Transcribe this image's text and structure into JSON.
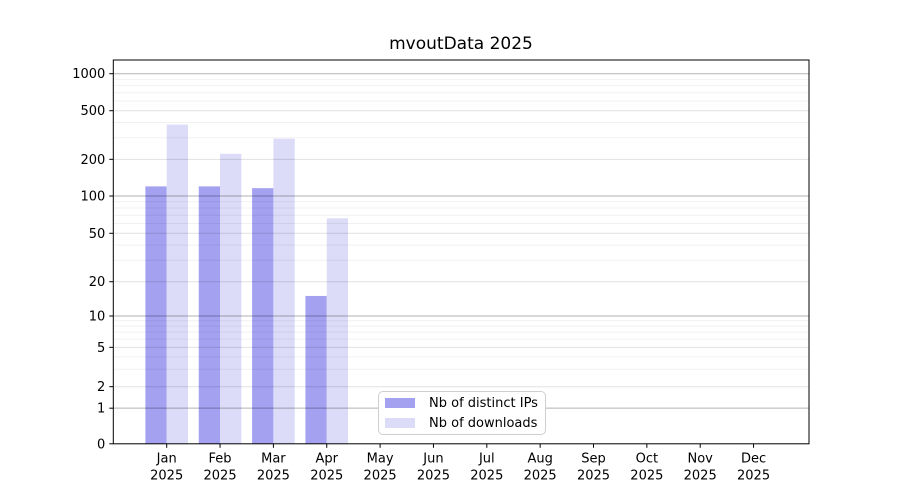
{
  "chart_data": {
    "type": "bar",
    "title": "mvoutData 2025",
    "categories": [
      "Jan",
      "Feb",
      "Mar",
      "Apr",
      "May",
      "Jun",
      "Jul",
      "Aug",
      "Sep",
      "Oct",
      "Nov",
      "Dec"
    ],
    "year": "2025",
    "series": [
      {
        "name": "Nb of distinct IPs",
        "color": "#a3a1f0",
        "values": [
          120,
          120,
          116,
          15,
          0,
          0,
          0,
          0,
          0,
          0,
          0,
          0
        ]
      },
      {
        "name": "Nb of downloads",
        "color": "#dcdbf8",
        "values": [
          385,
          222,
          295,
          66,
          0,
          0,
          0,
          0,
          0,
          0,
          0,
          0
        ]
      }
    ],
    "y_axis": {
      "scale": "symlog",
      "ticks": [
        0,
        1,
        2,
        5,
        10,
        20,
        50,
        100,
        200,
        500,
        1000
      ],
      "minor_gridlines": [
        3,
        4,
        6,
        7,
        8,
        9,
        30,
        40,
        60,
        70,
        80,
        90,
        300,
        400,
        600,
        700,
        800,
        900
      ],
      "decade_gridlines": [
        1,
        10,
        100,
        1000
      ]
    },
    "legend": {
      "position": "lower center"
    },
    "grid": "horizontal"
  }
}
